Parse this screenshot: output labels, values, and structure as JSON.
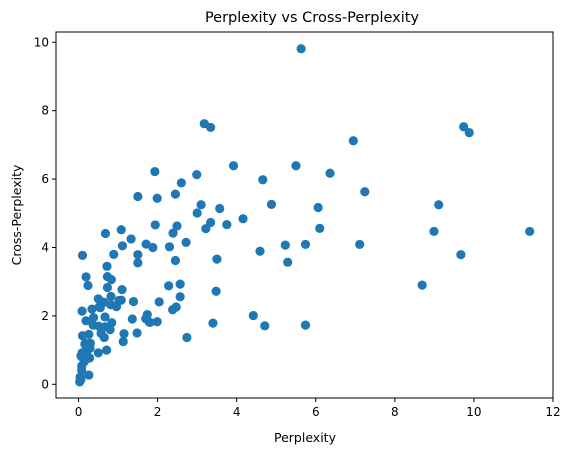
{
  "chart_data": {
    "type": "scatter",
    "title": "Perplexity vs Cross-Perplexity",
    "xlabel": "Perplexity",
    "ylabel": "Cross-Perplexity",
    "xlim": [
      -0.57,
      12.0
    ],
    "ylim": [
      -0.4,
      10.3
    ],
    "xticks": [
      0,
      2,
      4,
      6,
      8,
      10,
      12
    ],
    "yticks": [
      0,
      2,
      4,
      6,
      8,
      10
    ],
    "grid": false,
    "marker_color": "#1f77b4",
    "points": [
      [
        5.63,
        9.81
      ],
      [
        3.18,
        7.62
      ],
      [
        3.34,
        7.51
      ],
      [
        9.74,
        7.53
      ],
      [
        9.88,
        7.36
      ],
      [
        6.95,
        7.12
      ],
      [
        1.93,
        6.22
      ],
      [
        3.92,
        6.39
      ],
      [
        5.5,
        6.39
      ],
      [
        2.99,
        6.13
      ],
      [
        6.36,
        6.17
      ],
      [
        2.6,
        5.89
      ],
      [
        4.66,
        5.98
      ],
      [
        1.5,
        5.49
      ],
      [
        1.99,
        5.44
      ],
      [
        2.45,
        5.56
      ],
      [
        7.24,
        5.63
      ],
      [
        3.1,
        5.25
      ],
      [
        3.57,
        5.14
      ],
      [
        3.0,
        5.01
      ],
      [
        4.88,
        5.26
      ],
      [
        9.11,
        5.25
      ],
      [
        6.06,
        5.17
      ],
      [
        1.08,
        4.52
      ],
      [
        1.94,
        4.66
      ],
      [
        2.39,
        4.42
      ],
      [
        2.49,
        4.63
      ],
      [
        3.34,
        4.73
      ],
      [
        3.22,
        4.55
      ],
      [
        4.16,
        4.84
      ],
      [
        3.75,
        4.67
      ],
      [
        6.1,
        4.56
      ],
      [
        0.68,
        4.41
      ],
      [
        1.33,
        4.25
      ],
      [
        2.3,
        4.02
      ],
      [
        2.72,
        4.15
      ],
      [
        1.11,
        4.05
      ],
      [
        1.71,
        4.1
      ],
      [
        1.88,
        4.0
      ],
      [
        4.59,
        3.89
      ],
      [
        5.23,
        4.07
      ],
      [
        5.74,
        4.09
      ],
      [
        7.11,
        4.09
      ],
      [
        8.99,
        4.47
      ],
      [
        11.41,
        4.47
      ],
      [
        0.1,
        3.77
      ],
      [
        0.89,
        3.8
      ],
      [
        1.5,
        3.79
      ],
      [
        1.5,
        3.55
      ],
      [
        2.45,
        3.62
      ],
      [
        3.5,
        3.66
      ],
      [
        5.29,
        3.57
      ],
      [
        9.67,
        3.79
      ],
      [
        0.72,
        3.45
      ],
      [
        0.19,
        3.14
      ],
      [
        0.73,
        3.15
      ],
      [
        0.83,
        3.06
      ],
      [
        0.24,
        2.89
      ],
      [
        0.73,
        2.83
      ],
      [
        1.1,
        2.77
      ],
      [
        2.28,
        2.88
      ],
      [
        2.57,
        2.93
      ],
      [
        1.08,
        2.46
      ],
      [
        1.02,
        2.45
      ],
      [
        0.5,
        2.5
      ],
      [
        0.64,
        2.4
      ],
      [
        0.82,
        2.57
      ],
      [
        0.52,
        2.26
      ],
      [
        0.81,
        2.33
      ],
      [
        1.39,
        2.42
      ],
      [
        2.04,
        2.41
      ],
      [
        2.57,
        2.56
      ],
      [
        3.48,
        2.72
      ],
      [
        8.69,
        2.9
      ],
      [
        0.09,
        2.14
      ],
      [
        0.34,
        2.2
      ],
      [
        0.55,
        2.24
      ],
      [
        0.96,
        2.27
      ],
      [
        2.38,
        2.18
      ],
      [
        2.47,
        2.26
      ],
      [
        0.38,
        1.95
      ],
      [
        0.67,
        1.97
      ],
      [
        0.19,
        1.86
      ],
      [
        0.37,
        1.73
      ],
      [
        0.51,
        1.7
      ],
      [
        0.67,
        1.68
      ],
      [
        0.84,
        1.8
      ],
      [
        0.8,
        1.6
      ],
      [
        1.36,
        1.91
      ],
      [
        1.74,
        2.04
      ],
      [
        1.79,
        1.82
      ],
      [
        1.7,
        1.92
      ],
      [
        1.99,
        1.83
      ],
      [
        1.81,
        1.81
      ],
      [
        0.26,
        1.46
      ],
      [
        0.57,
        1.49
      ],
      [
        1.15,
        1.48
      ],
      [
        1.48,
        1.5
      ],
      [
        0.1,
        1.42
      ],
      [
        0.65,
        1.37
      ],
      [
        1.13,
        1.25
      ],
      [
        2.74,
        1.37
      ],
      [
        3.4,
        1.79
      ],
      [
        4.42,
        2.01
      ],
      [
        4.71,
        1.71
      ],
      [
        5.74,
        1.73
      ],
      [
        0.17,
        1.2
      ],
      [
        0.27,
        1.1
      ],
      [
        0.16,
        1.17
      ],
      [
        0.3,
        1.2
      ],
      [
        0.2,
        1.04
      ],
      [
        0.29,
        1.05
      ],
      [
        0.71,
        1.0
      ],
      [
        0.5,
        0.92
      ],
      [
        0.09,
        0.92
      ],
      [
        0.2,
        0.88
      ],
      [
        0.28,
        0.77
      ],
      [
        0.1,
        0.78
      ],
      [
        0.15,
        0.67
      ],
      [
        0.06,
        0.83
      ],
      [
        0.08,
        0.54
      ],
      [
        0.08,
        0.41
      ],
      [
        0.04,
        0.21
      ],
      [
        0.06,
        0.14
      ],
      [
        0.03,
        0.07
      ],
      [
        0.26,
        0.27
      ]
    ]
  }
}
